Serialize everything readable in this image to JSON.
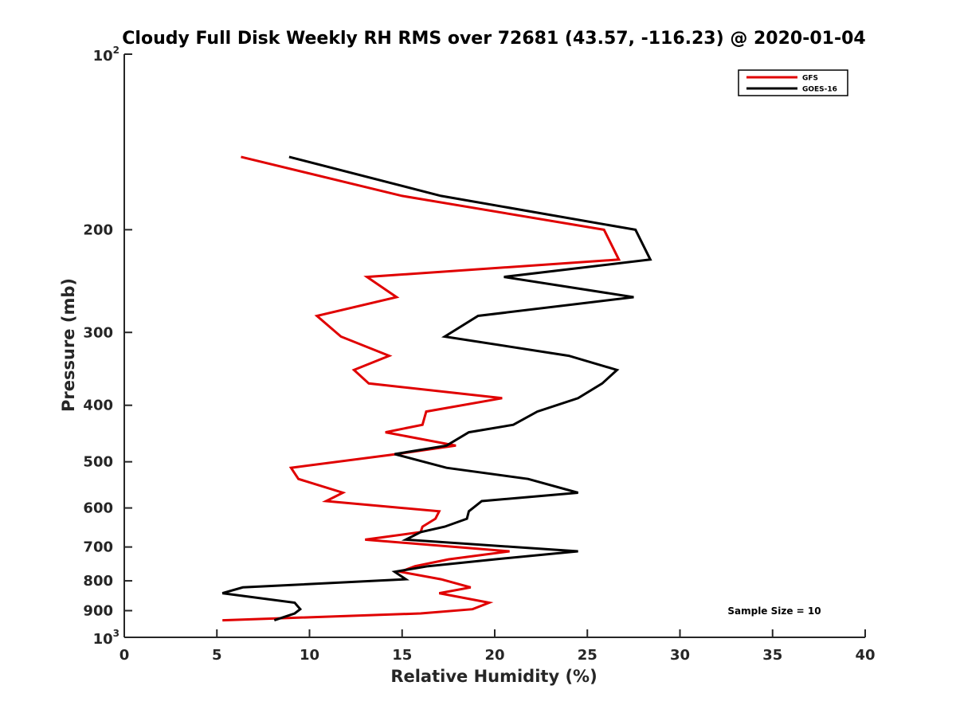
{
  "chart_data": {
    "type": "line",
    "title": "Cloudy Full Disk Weekly RH RMS over 72681 (43.57, -116.23) @ 2020-01-04",
    "xlabel": "Relative Humidity (%)",
    "ylabel": "Pressure (mb)",
    "xlim": [
      0,
      40
    ],
    "ylim": [
      100,
      1000
    ],
    "y_scale": "log",
    "y_reversed": true,
    "x_ticks": [
      "0",
      "5",
      "10",
      "15",
      "20",
      "25",
      "30",
      "35",
      "40"
    ],
    "y_ticks": [
      {
        "value": 100,
        "base": "10",
        "exp": "2"
      },
      {
        "value": 200,
        "label": "200"
      },
      {
        "value": 300,
        "label": "300"
      },
      {
        "value": 400,
        "label": "400"
      },
      {
        "value": 500,
        "label": "500"
      },
      {
        "value": 600,
        "label": "600"
      },
      {
        "value": 700,
        "label": "700"
      },
      {
        "value": 800,
        "label": "800"
      },
      {
        "value": 900,
        "label": "900"
      },
      {
        "value": 1000,
        "base": "10",
        "exp": "3"
      }
    ],
    "grid": false,
    "legend_position": "top-right",
    "annotation": "Sample Size = 10",
    "series": [
      {
        "name": "GFS",
        "color": "#e00000",
        "points": [
          [
            6.3,
            150
          ],
          [
            15,
            175
          ],
          [
            25.9,
            200
          ],
          [
            26.7,
            225
          ],
          [
            13.1,
            241
          ],
          [
            14.7,
            261
          ],
          [
            10.4,
            281
          ],
          [
            11.7,
            305
          ],
          [
            14.3,
            329
          ],
          [
            12.4,
            348
          ],
          [
            13.2,
            367
          ],
          [
            20.4,
            389
          ],
          [
            16.3,
            410
          ],
          [
            16.1,
            432
          ],
          [
            14.1,
            445
          ],
          [
            17.9,
            469
          ],
          [
            14.7,
            485
          ],
          [
            9.0,
            512
          ],
          [
            9.4,
            535
          ],
          [
            11.8,
            565
          ],
          [
            10.9,
            584
          ],
          [
            17.0,
            608
          ],
          [
            16.8,
            626
          ],
          [
            16.1,
            646
          ],
          [
            16.0,
            660
          ],
          [
            13.0,
            680
          ],
          [
            20.8,
            712
          ],
          [
            17.5,
            735
          ],
          [
            15.7,
            755
          ],
          [
            14.9,
            772
          ],
          [
            17.1,
            795
          ],
          [
            18.7,
            821
          ],
          [
            17.0,
            840
          ],
          [
            19.7,
            872
          ],
          [
            18.8,
            895
          ],
          [
            16.0,
            910
          ],
          [
            5.3,
            935
          ]
        ]
      },
      {
        "name": "GOES-16",
        "color": "#000000",
        "points": [
          [
            8.9,
            150
          ],
          [
            17.1,
            175
          ],
          [
            27.6,
            200
          ],
          [
            28.4,
            225
          ],
          [
            20.5,
            241
          ],
          [
            27.5,
            261
          ],
          [
            19.1,
            281
          ],
          [
            17.3,
            305
          ],
          [
            24.0,
            329
          ],
          [
            26.6,
            348
          ],
          [
            25.8,
            367
          ],
          [
            24.5,
            389
          ],
          [
            22.3,
            410
          ],
          [
            21.0,
            432
          ],
          [
            18.6,
            445
          ],
          [
            17.4,
            469
          ],
          [
            14.6,
            485
          ],
          [
            17.4,
            512
          ],
          [
            21.8,
            535
          ],
          [
            24.5,
            565
          ],
          [
            19.3,
            584
          ],
          [
            18.6,
            608
          ],
          [
            18.5,
            626
          ],
          [
            17.3,
            646
          ],
          [
            16.0,
            660
          ],
          [
            15.2,
            680
          ],
          [
            24.5,
            712
          ],
          [
            20.0,
            735
          ],
          [
            16.4,
            755
          ],
          [
            14.6,
            772
          ],
          [
            15.2,
            795
          ],
          [
            6.4,
            821
          ],
          [
            5.3,
            840
          ],
          [
            9.2,
            872
          ],
          [
            9.5,
            895
          ],
          [
            9.2,
            910
          ],
          [
            8.1,
            935
          ]
        ]
      }
    ]
  }
}
